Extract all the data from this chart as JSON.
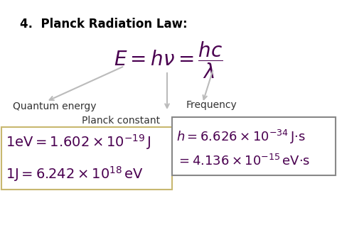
{
  "title": "4.  Planck Radiation Law:",
  "label_quantum": "Quantum energy",
  "label_frequency": "Frequency",
  "label_planck": "Planck constant",
  "bg_color": "#ffffff",
  "text_color": "#4a0050",
  "title_color": "#000000",
  "label_color": "#333333",
  "box_left_border": "#c8b870",
  "box_right_border": "#888888"
}
